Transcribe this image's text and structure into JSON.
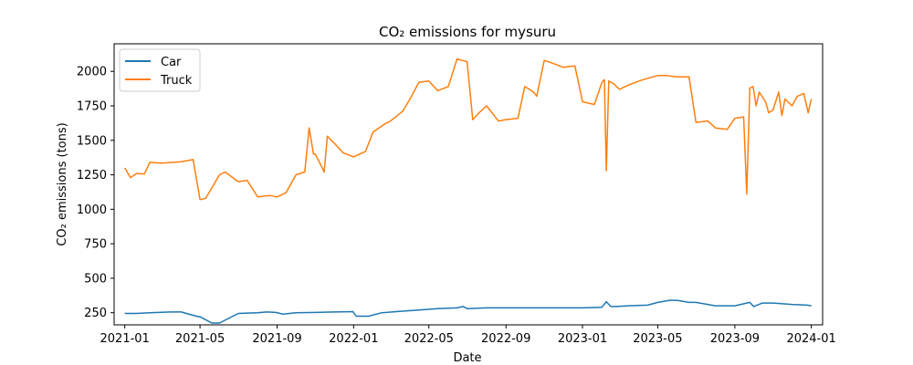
{
  "chart_data": {
    "type": "line",
    "title": "CO₂ emissions for mysuru",
    "xlabel": "Date",
    "ylabel": "CO₂ emissions (tons)",
    "x_range": [
      "2020-12-15",
      "2024-01-19"
    ],
    "ylim": [
      162,
      2200
    ],
    "x_ticks": [
      "2021-01",
      "2021-05",
      "2021-09",
      "2022-01",
      "2022-05",
      "2022-09",
      "2023-01",
      "2023-05",
      "2023-09",
      "2024-01"
    ],
    "y_ticks": [
      250,
      500,
      750,
      1000,
      1250,
      1500,
      1750,
      2000
    ],
    "grid": false,
    "legend_position": "top-left",
    "series": [
      {
        "name": "Car",
        "color": "#1f77b4",
        "x": [
          "2021-01-01",
          "2021-01-20",
          "2021-02-10",
          "2021-03-15",
          "2021-04-01",
          "2021-04-25",
          "2021-05-01",
          "2021-05-20",
          "2021-06-01",
          "2021-07-01",
          "2021-08-01",
          "2021-08-15",
          "2021-08-30",
          "2021-09-10",
          "2021-10-01",
          "2021-11-01",
          "2021-12-01",
          "2021-12-31",
          "2022-01-05",
          "2022-01-25",
          "2022-02-15",
          "2022-03-15",
          "2022-04-15",
          "2022-05-15",
          "2022-06-15",
          "2022-06-25",
          "2022-07-01",
          "2022-08-01",
          "2022-09-01",
          "2022-10-01",
          "2022-11-01",
          "2022-12-01",
          "2023-01-01",
          "2023-02-01",
          "2023-02-08",
          "2023-02-15",
          "2023-02-25",
          "2023-03-15",
          "2023-04-15",
          "2023-05-01",
          "2023-05-20",
          "2023-06-01",
          "2023-06-20",
          "2023-07-01",
          "2023-08-01",
          "2023-09-01",
          "2023-09-25",
          "2023-10-01",
          "2023-10-15",
          "2023-11-01",
          "2023-12-01",
          "2023-12-25",
          "2024-01-01"
        ],
        "values": [
          245,
          245,
          250,
          255,
          255,
          225,
          220,
          175,
          175,
          245,
          250,
          255,
          252,
          240,
          250,
          252,
          255,
          258,
          225,
          225,
          250,
          260,
          270,
          280,
          285,
          295,
          280,
          285,
          285,
          285,
          285,
          285,
          285,
          290,
          330,
          295,
          295,
          300,
          305,
          325,
          340,
          340,
          325,
          325,
          300,
          300,
          325,
          295,
          320,
          320,
          310,
          305,
          300
        ]
      },
      {
        "name": "Truck",
        "color": "#ff7f0e",
        "x": [
          "2021-01-01",
          "2021-01-10",
          "2021-01-20",
          "2021-02-01",
          "2021-02-10",
          "2021-03-01",
          "2021-04-01",
          "2021-04-20",
          "2021-05-01",
          "2021-05-10",
          "2021-06-01",
          "2021-06-10",
          "2021-07-01",
          "2021-07-15",
          "2021-08-01",
          "2021-08-20",
          "2021-09-01",
          "2021-09-15",
          "2021-10-01",
          "2021-10-15",
          "2021-10-22",
          "2021-10-29",
          "2021-11-01",
          "2021-11-15",
          "2021-11-20",
          "2021-12-01",
          "2021-12-15",
          "2022-01-01",
          "2022-01-20",
          "2022-02-01",
          "2022-02-20",
          "2022-03-01",
          "2022-03-20",
          "2022-04-01",
          "2022-04-15",
          "2022-05-01",
          "2022-05-15",
          "2022-06-01",
          "2022-06-15",
          "2022-07-01",
          "2022-07-10",
          "2022-07-20",
          "2022-08-01",
          "2022-08-20",
          "2022-09-01",
          "2022-09-20",
          "2022-10-01",
          "2022-10-15",
          "2022-10-20",
          "2022-11-01",
          "2022-11-20",
          "2022-12-01",
          "2022-12-20",
          "2023-01-01",
          "2023-01-20",
          "2023-02-01",
          "2023-02-05",
          "2023-02-08",
          "2023-02-12",
          "2023-02-20",
          "2023-03-01",
          "2023-03-15",
          "2023-04-01",
          "2023-04-15",
          "2023-05-01",
          "2023-05-15",
          "2023-06-01",
          "2023-06-20",
          "2023-07-01",
          "2023-07-20",
          "2023-08-01",
          "2023-08-20",
          "2023-09-01",
          "2023-09-15",
          "2023-09-20",
          "2023-09-25",
          "2023-09-30",
          "2023-10-05",
          "2023-10-10",
          "2023-10-20",
          "2023-10-25",
          "2023-11-01",
          "2023-11-10",
          "2023-11-15",
          "2023-11-20",
          "2023-12-01",
          "2023-12-10",
          "2023-12-20",
          "2023-12-27",
          "2024-01-01"
        ],
        "values": [
          1300,
          1230,
          1260,
          1255,
          1340,
          1335,
          1345,
          1360,
          1070,
          1080,
          1250,
          1270,
          1200,
          1210,
          1090,
          1100,
          1090,
          1120,
          1250,
          1270,
          1590,
          1400,
          1400,
          1270,
          1530,
          1480,
          1410,
          1380,
          1420,
          1560,
          1620,
          1640,
          1710,
          1800,
          1920,
          1930,
          1860,
          1890,
          2090,
          2070,
          1650,
          1700,
          1750,
          1640,
          1650,
          1660,
          1890,
          1850,
          1820,
          2080,
          2050,
          2030,
          2040,
          1780,
          1760,
          1920,
          1940,
          1280,
          1930,
          1910,
          1870,
          1900,
          1930,
          1950,
          1970,
          1970,
          1960,
          1960,
          1630,
          1640,
          1590,
          1580,
          1660,
          1670,
          1110,
          1880,
          1890,
          1750,
          1850,
          1780,
          1700,
          1720,
          1850,
          1680,
          1800,
          1750,
          1820,
          1840,
          1700,
          1800
        ]
      }
    ]
  }
}
